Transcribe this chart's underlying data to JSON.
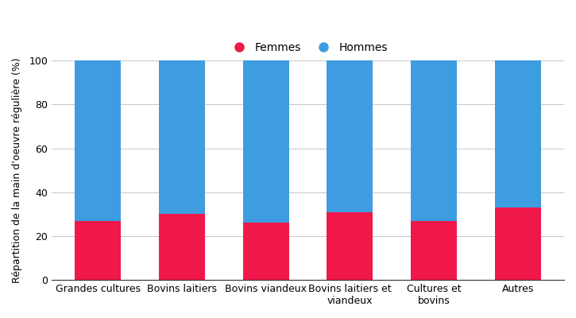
{
  "categories": [
    "Grandes cultures",
    "Bovins laitiers",
    "Bovins viandeux",
    "Bovins laitiers et\nviandeux",
    "Cultures et\nbovins",
    "Autres"
  ],
  "femmes": [
    27,
    30,
    26,
    31,
    27,
    33
  ],
  "hommes": [
    73,
    70,
    74,
    69,
    73,
    67
  ],
  "color_femmes": "#f0174a",
  "color_hommes": "#3d9de0",
  "ylabel": "Répartition de la main d'oeuvre régulière (%)",
  "ylim": [
    0,
    100
  ],
  "legend_femmes": "Femmes",
  "legend_hommes": "Hommes",
  "bar_width": 0.55,
  "background_color": "#ffffff",
  "grid_color": "#cccccc"
}
